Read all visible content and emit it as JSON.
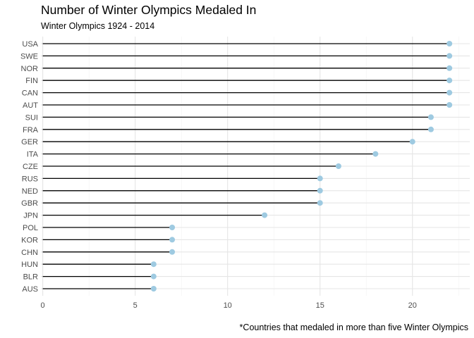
{
  "chart_data": {
    "type": "lollipop",
    "title": "Number of Winter Olympics Medaled In",
    "subtitle": "Winter Olympics 1924 - 2014",
    "caption": "*Countries that medaled in more than five Winter Olympics",
    "xlabel": "",
    "ylabel": "",
    "xlim": [
      0,
      22
    ],
    "x_ticks": [
      0,
      5,
      10,
      15,
      20
    ],
    "x_tick_labels": [
      "0",
      "5",
      "10",
      "15",
      "20"
    ],
    "grid": true,
    "categories": [
      "USA",
      "SWE",
      "NOR",
      "FIN",
      "CAN",
      "AUT",
      "SUI",
      "FRA",
      "GER",
      "ITA",
      "CZE",
      "RUS",
      "NED",
      "GBR",
      "JPN",
      "POL",
      "KOR",
      "CHN",
      "HUN",
      "BLR",
      "AUS"
    ],
    "values": [
      22,
      22,
      22,
      22,
      22,
      22,
      21,
      21,
      20,
      18,
      16,
      15,
      15,
      15,
      12,
      7,
      7,
      7,
      6,
      6,
      6
    ],
    "colors": {
      "point": "#9ecae1",
      "stem": "#000000",
      "grid_major": "#e5e5e5",
      "grid_minor": "#f2f2f2"
    }
  }
}
